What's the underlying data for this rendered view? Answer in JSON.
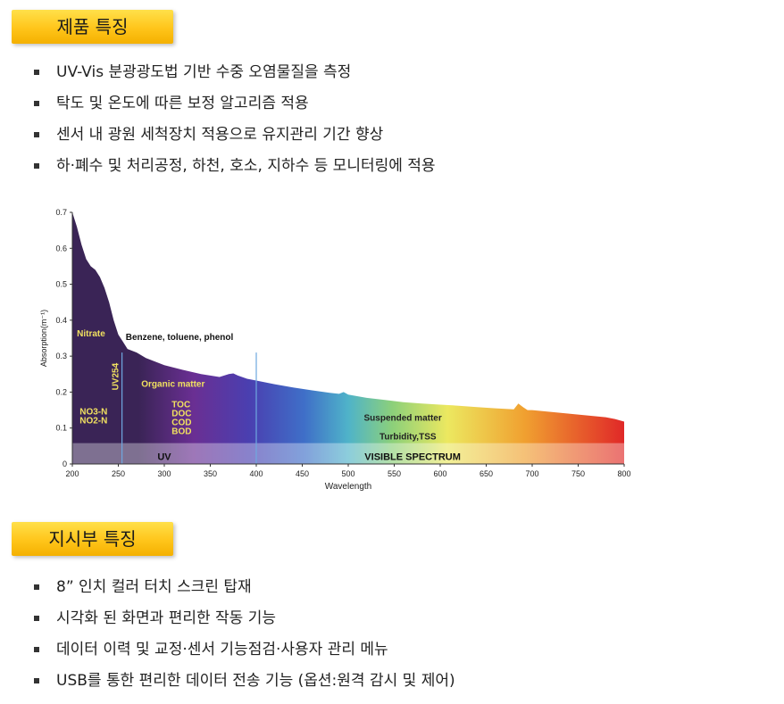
{
  "product_features": {
    "title": "제품 특징",
    "items": [
      "UV-Vis 분광광도법 기반 수중 오염물질을 측정",
      "탁도 및 온도에 따른 보정 알고리즘 적용",
      "센서 내 광원 세척장치 적용으로 유지관리 기간 향상",
      "하·폐수 및 처리공정, 하천, 호소, 지하수 등 모니터링에 적용"
    ]
  },
  "display_features": {
    "title": "지시부 특징",
    "items": [
      "8” 인치 컬러 터치 스크린 탑재",
      "시각화 된 화면과 편리한 작동 기능",
      "데이터 이력 및 교정·센서 기능점검·사용자 관리 메뉴",
      "USB를 통한 편리한 데이터 전송 기능 (옵션:원격 감시 및 제어)"
    ]
  },
  "chart_data": {
    "type": "area",
    "xlabel": "Wavelength",
    "ylabel": "Absorption(m⁻¹)",
    "xlim": [
      200,
      800
    ],
    "ylim": [
      0,
      0.7
    ],
    "xticks": [
      200,
      250,
      300,
      350,
      400,
      450,
      500,
      550,
      600,
      650,
      700,
      750,
      800
    ],
    "yticks": [
      0,
      0.1,
      0.2,
      0.3,
      0.4,
      0.5,
      0.6,
      0.7
    ],
    "x": [
      200,
      205,
      210,
      215,
      220,
      225,
      230,
      235,
      240,
      245,
      250,
      255,
      260,
      270,
      280,
      290,
      300,
      320,
      340,
      360,
      370,
      375,
      380,
      390,
      400,
      420,
      440,
      460,
      480,
      490,
      495,
      500,
      520,
      540,
      560,
      580,
      600,
      620,
      640,
      660,
      680,
      685,
      690,
      695,
      700,
      720,
      740,
      760,
      780,
      790,
      800
    ],
    "y": [
      0.7,
      0.66,
      0.61,
      0.57,
      0.55,
      0.54,
      0.52,
      0.49,
      0.45,
      0.4,
      0.36,
      0.34,
      0.32,
      0.31,
      0.295,
      0.285,
      0.275,
      0.262,
      0.25,
      0.242,
      0.25,
      0.252,
      0.246,
      0.237,
      0.232,
      0.222,
      0.213,
      0.205,
      0.198,
      0.195,
      0.2,
      0.193,
      0.184,
      0.178,
      0.172,
      0.168,
      0.165,
      0.162,
      0.158,
      0.155,
      0.152,
      0.168,
      0.158,
      0.15,
      0.15,
      0.145,
      0.14,
      0.135,
      0.13,
      0.125,
      0.118
    ],
    "markers": [
      {
        "label": "UV254",
        "x": 254
      },
      {
        "label": "",
        "x": 400
      }
    ],
    "annotations": [
      {
        "text": "Nitrate",
        "x": 205,
        "y": 0.355,
        "color": "#f0e060"
      },
      {
        "text": "Benzene, toluene, phenol",
        "x": 258,
        "y": 0.345,
        "color": "#111111"
      },
      {
        "text": "Organic matter",
        "x": 275,
        "y": 0.215,
        "color": "#f0e060"
      },
      {
        "text": "TOC",
        "x": 308,
        "y": 0.158,
        "color": "#f0e060"
      },
      {
        "text": "DOC",
        "x": 308,
        "y": 0.133,
        "color": "#f0e060"
      },
      {
        "text": "COD",
        "x": 308,
        "y": 0.108,
        "color": "#f0e060"
      },
      {
        "text": "BOD",
        "x": 308,
        "y": 0.083,
        "color": "#f0e060"
      },
      {
        "text": "NO3-N",
        "x": 208,
        "y": 0.138,
        "color": "#f0e060"
      },
      {
        "text": "NO2-N",
        "x": 208,
        "y": 0.113,
        "color": "#f0e060"
      },
      {
        "text": "Suspended matter",
        "x": 517,
        "y": 0.12,
        "color": "#222222"
      },
      {
        "text": "Turbidity,TSS",
        "x": 534,
        "y": 0.068,
        "color": "#222222"
      }
    ],
    "bands": [
      {
        "label": "UV",
        "x_from": 200,
        "x_to": 400
      },
      {
        "label": "VISIBLE SPECTRUM",
        "x_from": 400,
        "x_to": 800
      }
    ],
    "colors": {
      "uv_start": "#3a2456",
      "uv_mid": "#6a2f93",
      "violet": "#4a3fb0",
      "blue": "#3f6fc8",
      "cyan": "#4fb3c9",
      "green": "#8cd07a",
      "yellow": "#ece860",
      "orange": "#f0a030",
      "red": "#e02828"
    }
  }
}
